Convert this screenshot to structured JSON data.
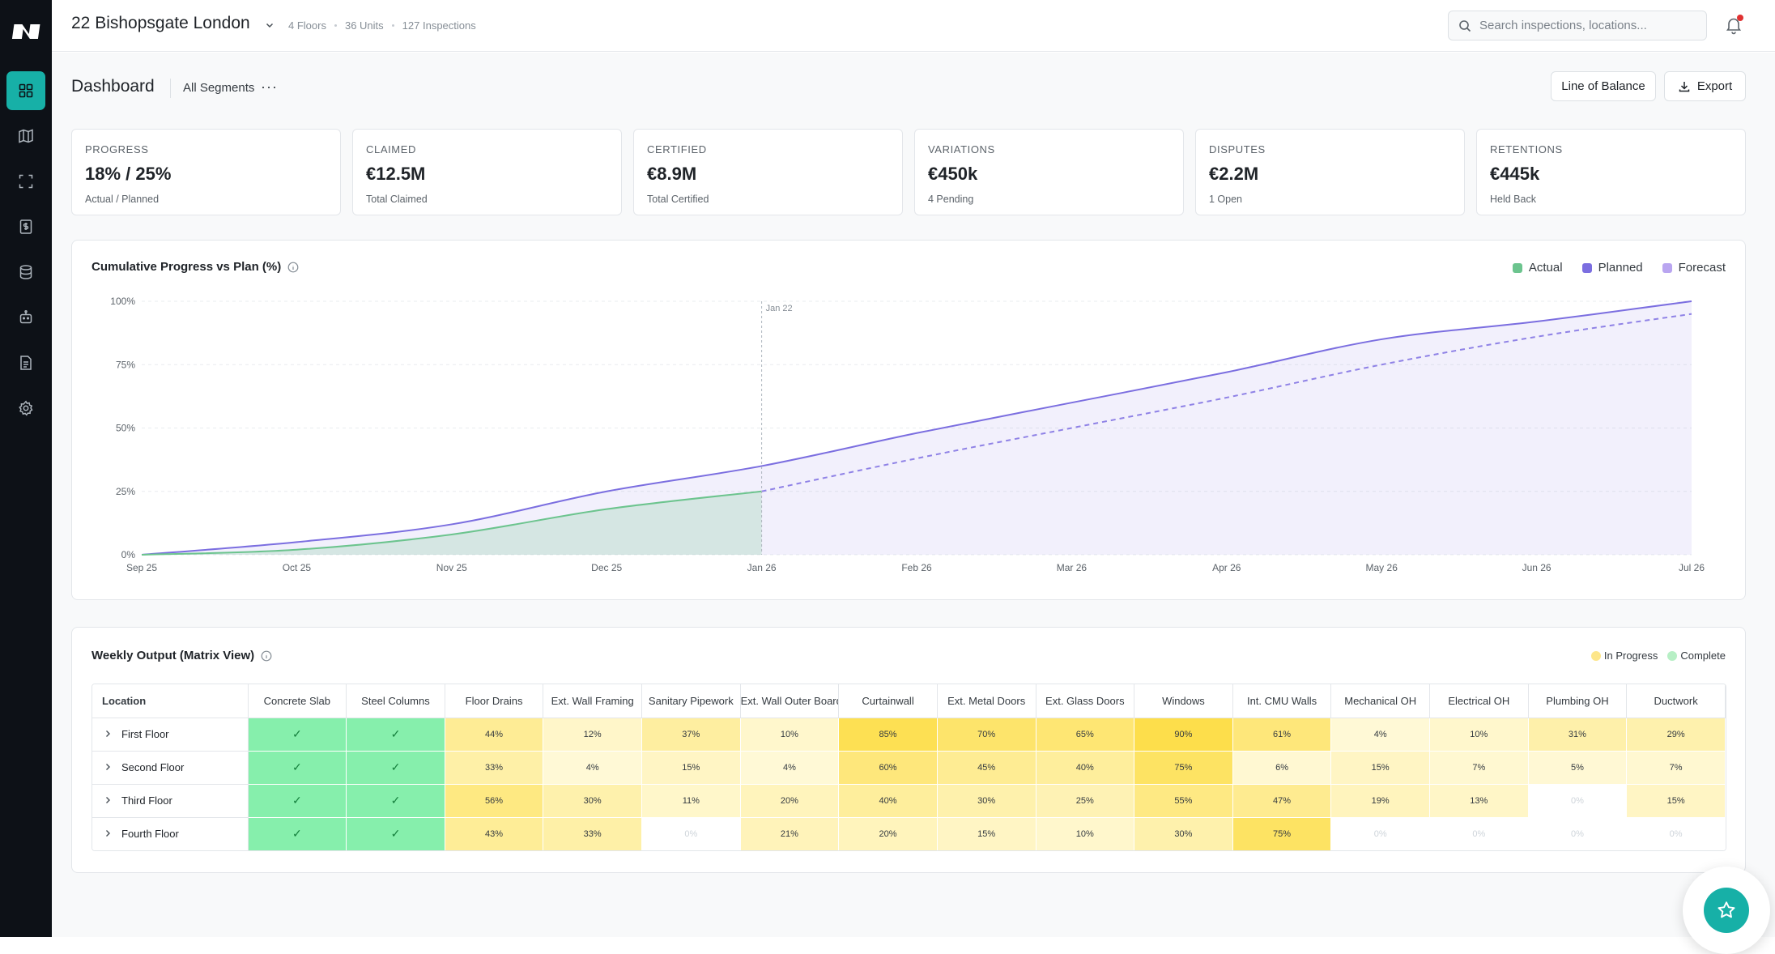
{
  "project": {
    "title": "22 Bishopsgate London",
    "stats": [
      "4 Floors",
      "36 Units",
      "127 Inspections"
    ]
  },
  "search": {
    "placeholder": "Search inspections, locations..."
  },
  "sidebar": {
    "items": [
      {
        "icon": "dashboard-icon",
        "active": true
      },
      {
        "icon": "map-icon",
        "active": false
      },
      {
        "icon": "scan-icon",
        "active": false
      },
      {
        "icon": "finance-icon",
        "active": false
      },
      {
        "icon": "database-icon",
        "active": false
      },
      {
        "icon": "robot-icon",
        "active": false
      },
      {
        "icon": "report-icon",
        "active": false
      },
      {
        "icon": "settings-icon",
        "active": false
      }
    ]
  },
  "page": {
    "title": "Dashboard",
    "segment_filter": "All Segments",
    "more_label": "···",
    "line_of_balance_label": "Line of Balance",
    "export_label": "Export"
  },
  "kpis": [
    {
      "label": "PROGRESS",
      "value": "18% / 25%",
      "sub": "Actual / Planned"
    },
    {
      "label": "CLAIMED",
      "value": "€12.5M",
      "sub": "Total Claimed"
    },
    {
      "label": "CERTIFIED",
      "value": "€8.9M",
      "sub": "Total Certified"
    },
    {
      "label": "VARIATIONS",
      "value": "€450k",
      "sub": "4 Pending"
    },
    {
      "label": "DISPUTES",
      "value": "€2.2M",
      "sub": "1 Open"
    },
    {
      "label": "RETENTIONS",
      "value": "€445k",
      "sub": "Held Back"
    }
  ],
  "chart_data": {
    "type": "area",
    "title": "Cumulative Progress vs Plan (%)",
    "x": [
      "Sep 25",
      "Oct 25",
      "Nov 25",
      "Dec 25",
      "Jan 26",
      "Feb 26",
      "Mar 26",
      "Apr 26",
      "May 26",
      "Jun 26",
      "Jul 26"
    ],
    "y_ticks": [
      "0%",
      "25%",
      "50%",
      "75%",
      "100%"
    ],
    "ylim": [
      0,
      100
    ],
    "grid": true,
    "legend_position": "top-right",
    "marker": {
      "label": "Jan 22",
      "x": "Jan 26"
    },
    "series": [
      {
        "name": "Actual",
        "color": "#6cc48e",
        "values": [
          0,
          2,
          8,
          18,
          25,
          null,
          null,
          null,
          null,
          null,
          null
        ]
      },
      {
        "name": "Planned",
        "color": "#7b6ee0",
        "values": [
          0,
          5,
          12,
          25,
          35,
          48,
          60,
          72,
          85,
          92,
          100
        ]
      },
      {
        "name": "Forecast",
        "color": "#b9a5f0",
        "values": [
          null,
          null,
          null,
          null,
          25,
          38,
          50,
          62,
          75,
          86,
          95
        ]
      }
    ]
  },
  "matrix": {
    "title": "Weekly Output (Matrix View)",
    "legend": [
      {
        "label": "In Progress",
        "color": "#fde68a"
      },
      {
        "label": "Complete",
        "color": "#b7efc5"
      }
    ],
    "location_header": "Location",
    "columns": [
      "Concrete Slab",
      "Steel Columns",
      "Floor Drains",
      "Ext. Wall Framing",
      "Sanitary Pipework",
      "Ext. Wall Outer Board",
      "Curtainwall",
      "Ext. Metal Doors",
      "Ext. Glass Doors",
      "Windows",
      "Int. CMU Walls",
      "Mechanical OH",
      "Electrical OH",
      "Plumbing OH",
      "Ductwork"
    ],
    "rows": [
      {
        "location": "First Floor",
        "cells": [
          "✓",
          "✓",
          "44%",
          "12%",
          "37%",
          "10%",
          "85%",
          "70%",
          "65%",
          "90%",
          "61%",
          "4%",
          "10%",
          "31%",
          "29%"
        ]
      },
      {
        "location": "Second Floor",
        "cells": [
          "✓",
          "✓",
          "33%",
          "4%",
          "15%",
          "4%",
          "60%",
          "45%",
          "40%",
          "75%",
          "6%",
          "15%",
          "7%",
          "5%",
          "7%"
        ]
      },
      {
        "location": "Third Floor",
        "cells": [
          "✓",
          "✓",
          "56%",
          "30%",
          "11%",
          "20%",
          "40%",
          "30%",
          "25%",
          "55%",
          "47%",
          "19%",
          "13%",
          "0%",
          "15%"
        ]
      },
      {
        "location": "Fourth Floor",
        "cells": [
          "✓",
          "✓",
          "43%",
          "33%",
          "0%",
          "21%",
          "20%",
          "15%",
          "10%",
          "30%",
          "75%",
          "0%",
          "0%",
          "0%",
          "0%"
        ]
      }
    ]
  }
}
